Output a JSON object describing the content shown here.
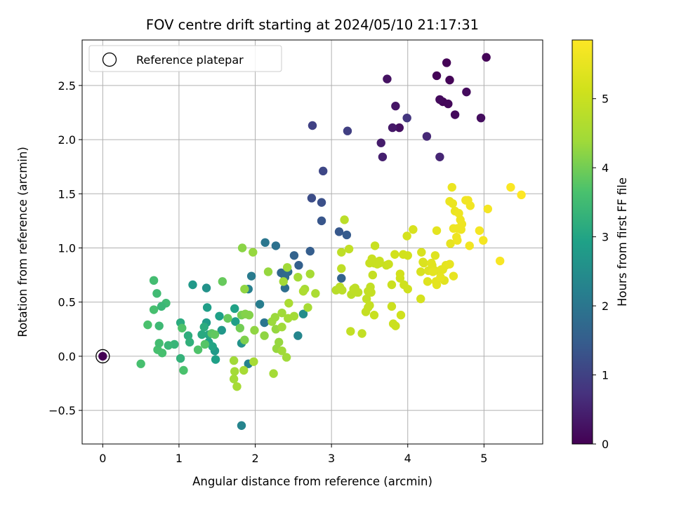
{
  "chart_data": {
    "type": "scatter",
    "title": "FOV centre drift starting at 2024/05/10 21:17:31",
    "xlabel": "Angular distance from reference (arcmin)",
    "ylabel": "Rotation from reference (arcmin)",
    "xlim": [
      -0.27,
      5.77
    ],
    "ylim": [
      -0.81,
      2.92
    ],
    "xticks": [
      0,
      1,
      2,
      3,
      4,
      5
    ],
    "yticks": [
      -0.5,
      0.0,
      0.5,
      1.0,
      1.5,
      2.0,
      2.5
    ],
    "xtick_labels": [
      "0",
      "1",
      "2",
      "3",
      "4",
      "5"
    ],
    "ytick_labels": [
      "−0.5",
      "0.0",
      "0.5",
      "1.0",
      "1.5",
      "2.0",
      "2.5"
    ],
    "grid": true,
    "legend": {
      "position": "top-left",
      "entries": [
        {
          "label": "Reference platepar",
          "marker": "open-circle"
        }
      ]
    },
    "reference_point": {
      "x": 0,
      "y": 0
    },
    "colorbar": {
      "label": "Hours from first FF file",
      "colormap": "viridis",
      "min": 0,
      "max": 5.85,
      "ticks": [
        0,
        1,
        2,
        3,
        4,
        5
      ],
      "tick_labels": [
        "0",
        "1",
        "2",
        "3",
        "4",
        "5"
      ]
    },
    "series": [
      {
        "points": [
          [
            4.55,
            2.55,
            0.05
          ],
          [
            4.46,
            2.35,
            0.08
          ],
          [
            4.53,
            2.33,
            0.1
          ],
          [
            4.62,
            2.23,
            0.12
          ],
          [
            4.42,
            2.37,
            0.14
          ],
          [
            4.77,
            2.44,
            0.15
          ],
          [
            5.03,
            2.76,
            0.05
          ],
          [
            4.51,
            2.71,
            0.03
          ],
          [
            4.38,
            2.59,
            0.06
          ],
          [
            4.96,
            2.2,
            0.18
          ],
          [
            3.89,
            2.11,
            0.22
          ],
          [
            3.73,
            2.56,
            0.25
          ],
          [
            3.84,
            2.31,
            0.3
          ],
          [
            3.8,
            2.11,
            0.35
          ],
          [
            3.65,
            1.97,
            0.4
          ],
          [
            3.67,
            1.84,
            0.45
          ],
          [
            4.42,
            1.84,
            0.55
          ],
          [
            4.25,
            2.03,
            0.6
          ],
          [
            3.99,
            2.2,
            0.8
          ],
          [
            3.21,
            2.08,
            0.95
          ],
          [
            2.75,
            2.13,
            1.0
          ],
          [
            2.89,
            1.71,
            1.1
          ],
          [
            2.74,
            1.46,
            1.2
          ],
          [
            2.87,
            1.42,
            1.25
          ],
          [
            2.87,
            1.25,
            1.35
          ],
          [
            3.1,
            1.15,
            1.4
          ],
          [
            3.2,
            1.12,
            1.45
          ],
          [
            2.72,
            0.97,
            1.5
          ],
          [
            2.57,
            0.84,
            1.55
          ],
          [
            2.51,
            0.93,
            1.6
          ],
          [
            2.34,
            0.77,
            1.7
          ],
          [
            2.39,
            0.73,
            1.75
          ],
          [
            2.43,
            0.78,
            1.8
          ],
          [
            2.39,
            0.63,
            1.85
          ],
          [
            2.27,
            1.02,
            1.9
          ],
          [
            2.13,
            1.05,
            2.0
          ],
          [
            2.12,
            0.31,
            2.0
          ],
          [
            1.95,
            0.74,
            2.1
          ],
          [
            2.06,
            0.48,
            2.15
          ],
          [
            1.91,
            0.62,
            2.2
          ],
          [
            1.91,
            -0.07,
            2.25
          ],
          [
            1.82,
            -0.64,
            2.3
          ],
          [
            2.56,
            0.19,
            2.35
          ],
          [
            2.63,
            0.39,
            2.5
          ],
          [
            3.13,
            0.72,
            1.6
          ],
          [
            1.82,
            0.12,
            2.6
          ],
          [
            1.36,
            0.63,
            2.6
          ],
          [
            1.56,
            0.24,
            2.7
          ],
          [
            1.47,
            0.05,
            2.75
          ],
          [
            1.36,
            0.31,
            2.8
          ],
          [
            1.37,
            0.45,
            2.85
          ],
          [
            1.48,
            -0.03,
            2.9
          ],
          [
            1.39,
            0.13,
            2.95
          ],
          [
            1.44,
            0.09,
            3.0
          ],
          [
            1.53,
            0.37,
            2.9
          ],
          [
            1.74,
            0.32,
            2.85
          ],
          [
            1.73,
            0.44,
            2.95
          ],
          [
            1.39,
            0.2,
            3.05
          ],
          [
            1.3,
            0.2,
            3.1
          ],
          [
            1.33,
            0.27,
            3.15
          ],
          [
            1.18,
            0.66,
            2.75
          ],
          [
            1.02,
            0.31,
            3.15
          ],
          [
            1.12,
            0.19,
            3.2
          ],
          [
            1.14,
            0.13,
            3.25
          ],
          [
            1.02,
            -0.02,
            3.3
          ],
          [
            0.94,
            0.11,
            3.35
          ],
          [
            0.86,
            0.1,
            3.4
          ],
          [
            0.74,
            0.28,
            3.45
          ],
          [
            0.83,
            0.49,
            3.5
          ],
          [
            0.77,
            0.46,
            3.4
          ],
          [
            0.71,
            0.58,
            3.5
          ],
          [
            0.67,
            0.7,
            3.55
          ],
          [
            0.67,
            0.43,
            3.6
          ],
          [
            0.59,
            0.29,
            3.65
          ],
          [
            0.5,
            -0.07,
            3.6
          ],
          [
            0.72,
            0.06,
            3.6
          ],
          [
            0.74,
            0.12,
            3.55
          ],
          [
            0.78,
            0.03,
            3.6
          ],
          [
            1.06,
            -0.13,
            3.65
          ],
          [
            1.04,
            0.26,
            3.7
          ],
          [
            1.25,
            0.06,
            3.7
          ],
          [
            1.34,
            0.11,
            3.75
          ],
          [
            1.43,
            0.21,
            3.8
          ],
          [
            1.47,
            0.2,
            3.85
          ],
          [
            1.57,
            0.69,
            3.9
          ],
          [
            1.64,
            0.35,
            3.9
          ],
          [
            1.8,
            0.26,
            4.0
          ],
          [
            1.82,
            0.38,
            4.05
          ],
          [
            1.86,
            0.15,
            4.1
          ],
          [
            1.87,
            0.39,
            4.15
          ],
          [
            1.92,
            0.38,
            4.15
          ],
          [
            1.83,
            1.0,
            4.2
          ],
          [
            1.86,
            0.62,
            4.25
          ],
          [
            1.99,
            0.24,
            4.25
          ],
          [
            1.97,
            0.96,
            4.3
          ],
          [
            2.12,
            0.19,
            4.25
          ],
          [
            2.17,
            0.78,
            4.3
          ],
          [
            2.27,
            0.25,
            4.3
          ],
          [
            2.31,
            0.13,
            4.3
          ],
          [
            2.28,
            0.07,
            4.3
          ],
          [
            2.22,
            0.32,
            4.35
          ],
          [
            2.26,
            0.36,
            4.35
          ],
          [
            2.35,
            0.05,
            4.4
          ],
          [
            2.35,
            0.4,
            4.4
          ],
          [
            2.41,
            -0.01,
            4.4
          ],
          [
            2.42,
            0.82,
            4.4
          ],
          [
            2.43,
            0.35,
            4.45
          ],
          [
            2.37,
            0.69,
            4.45
          ],
          [
            2.51,
            0.37,
            4.45
          ],
          [
            2.56,
            0.73,
            4.45
          ],
          [
            2.65,
            0.62,
            4.5
          ],
          [
            2.69,
            0.45,
            4.5
          ],
          [
            2.72,
            0.76,
            4.5
          ],
          [
            2.79,
            0.58,
            4.55
          ],
          [
            1.72,
            -0.04,
            4.4
          ],
          [
            1.73,
            -0.14,
            4.45
          ],
          [
            1.72,
            -0.21,
            4.45
          ],
          [
            1.76,
            -0.28,
            4.5
          ],
          [
            1.85,
            -0.13,
            4.5
          ],
          [
            1.98,
            -0.05,
            4.5
          ],
          [
            2.24,
            -0.16,
            4.45
          ],
          [
            2.35,
            0.27,
            4.4
          ],
          [
            2.44,
            0.49,
            4.55
          ],
          [
            2.63,
            0.6,
            4.6
          ],
          [
            3.06,
            0.61,
            4.75
          ],
          [
            3.11,
            0.64,
            4.8
          ],
          [
            3.14,
            0.61,
            4.8
          ],
          [
            3.26,
            0.57,
            4.8
          ],
          [
            3.29,
            0.62,
            4.85
          ],
          [
            3.35,
            0.59,
            4.85
          ],
          [
            3.13,
            0.81,
            4.85
          ],
          [
            3.13,
            0.96,
            4.85
          ],
          [
            3.17,
            1.26,
            4.8
          ],
          [
            3.23,
            0.99,
            4.9
          ],
          [
            3.31,
            0.63,
            4.85
          ],
          [
            3.34,
            0.59,
            4.85
          ],
          [
            3.46,
            0.53,
            4.9
          ],
          [
            3.48,
            0.45,
            4.95
          ],
          [
            3.48,
            0.6,
            4.9
          ],
          [
            3.51,
            0.64,
            4.9
          ],
          [
            3.52,
            0.59,
            4.95
          ],
          [
            3.56,
            0.86,
            4.9
          ],
          [
            3.6,
            0.85,
            5.0
          ],
          [
            3.57,
            1.02,
            5.0
          ],
          [
            3.63,
            0.86,
            5.0
          ],
          [
            3.72,
            0.84,
            5.0
          ],
          [
            3.54,
            0.75,
            4.95
          ],
          [
            3.45,
            0.41,
            4.95
          ],
          [
            3.5,
            0.47,
            4.95
          ],
          [
            3.4,
            0.21,
            4.9
          ],
          [
            3.25,
            0.23,
            4.9
          ],
          [
            3.56,
            0.38,
            5.0
          ],
          [
            3.5,
            0.86,
            5.0
          ],
          [
            3.53,
            0.9,
            5.0
          ],
          [
            3.63,
            0.88,
            5.0
          ],
          [
            3.75,
            0.85,
            5.05
          ],
          [
            3.79,
            0.66,
            5.05
          ],
          [
            3.79,
            0.46,
            5.05
          ],
          [
            3.84,
            0.28,
            5.05
          ],
          [
            3.81,
            0.3,
            5.05
          ],
          [
            3.91,
            0.38,
            5.1
          ],
          [
            3.9,
            0.72,
            5.1
          ],
          [
            3.95,
            0.66,
            5.1
          ],
          [
            4.0,
            0.62,
            5.1
          ],
          [
            4.0,
            0.93,
            5.15
          ],
          [
            3.9,
            0.76,
            5.15
          ],
          [
            3.83,
            0.94,
            5.15
          ],
          [
            3.94,
            0.94,
            5.15
          ],
          [
            3.99,
            1.11,
            5.2
          ],
          [
            4.07,
            1.17,
            5.25
          ],
          [
            4.17,
            0.53,
            5.2
          ],
          [
            4.17,
            0.78,
            5.25
          ],
          [
            4.18,
            0.96,
            5.25
          ],
          [
            4.21,
            0.86,
            5.3
          ],
          [
            4.2,
            0.87,
            5.3
          ],
          [
            4.26,
            0.69,
            5.35
          ],
          [
            4.27,
            0.79,
            5.35
          ],
          [
            4.32,
            0.84,
            5.35
          ],
          [
            4.36,
            0.93,
            5.35
          ],
          [
            4.31,
            0.86,
            5.4
          ],
          [
            4.36,
            0.79,
            5.4
          ],
          [
            4.38,
            1.16,
            5.45
          ],
          [
            4.37,
            0.69,
            5.45
          ],
          [
            4.44,
            0.8,
            5.45
          ],
          [
            4.46,
            0.8,
            5.45
          ],
          [
            4.5,
            0.84,
            5.45
          ],
          [
            4.48,
            0.7,
            5.4
          ],
          [
            4.38,
            0.66,
            5.45
          ],
          [
            4.33,
            0.78,
            5.45
          ],
          [
            4.43,
            0.73,
            5.5
          ],
          [
            4.55,
            0.85,
            5.5
          ],
          [
            4.56,
            1.04,
            5.5
          ],
          [
            4.6,
            0.74,
            5.5
          ],
          [
            4.55,
            1.43,
            5.55
          ],
          [
            4.59,
            1.41,
            5.55
          ],
          [
            4.58,
            1.56,
            5.55
          ],
          [
            4.62,
            1.34,
            5.55
          ],
          [
            4.65,
            1.18,
            5.6
          ],
          [
            4.67,
            1.32,
            5.6
          ],
          [
            4.69,
            1.26,
            5.6
          ],
          [
            4.7,
            1.17,
            5.6
          ],
          [
            4.71,
            1.22,
            5.6
          ],
          [
            4.65,
            1.07,
            5.6
          ],
          [
            4.6,
            1.18,
            5.6
          ],
          [
            4.64,
            1.1,
            5.6
          ],
          [
            4.76,
            1.44,
            5.65
          ],
          [
            4.79,
            1.44,
            5.65
          ],
          [
            4.82,
            1.39,
            5.65
          ],
          [
            4.81,
            1.02,
            5.65
          ],
          [
            4.94,
            1.16,
            5.7
          ],
          [
            4.99,
            1.07,
            5.7
          ],
          [
            5.05,
            1.36,
            5.7
          ],
          [
            5.21,
            0.88,
            5.75
          ],
          [
            5.35,
            1.56,
            5.8
          ],
          [
            5.49,
            1.49,
            5.85
          ]
        ]
      }
    ]
  }
}
